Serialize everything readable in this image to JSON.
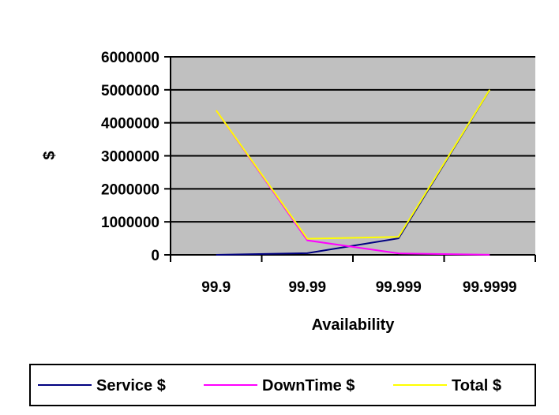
{
  "chart_data": {
    "type": "line",
    "categories": [
      "99.9",
      "99.99",
      "99.999",
      "99.9999"
    ],
    "series": [
      {
        "name": "Service $",
        "color": "#000080",
        "values": [
          0,
          50000,
          500000,
          5000000
        ]
      },
      {
        "name": "DownTime $",
        "color": "#ff00ff",
        "values": [
          4380000,
          438000,
          43800,
          4380
        ]
      },
      {
        "name": "Total $",
        "color": "#ffff00",
        "values": [
          4380000,
          488000,
          543800,
          5004380
        ]
      }
    ],
    "y_ticks": [
      "6000000",
      "5000000",
      "4000000",
      "3000000",
      "2000000",
      "1000000",
      "0"
    ],
    "xlabel": "Availability",
    "ylabel": "$",
    "ylim": [
      0,
      6000000
    ],
    "plot_background": "#c0c0c0",
    "grid": true,
    "legend_position": "bottom"
  }
}
